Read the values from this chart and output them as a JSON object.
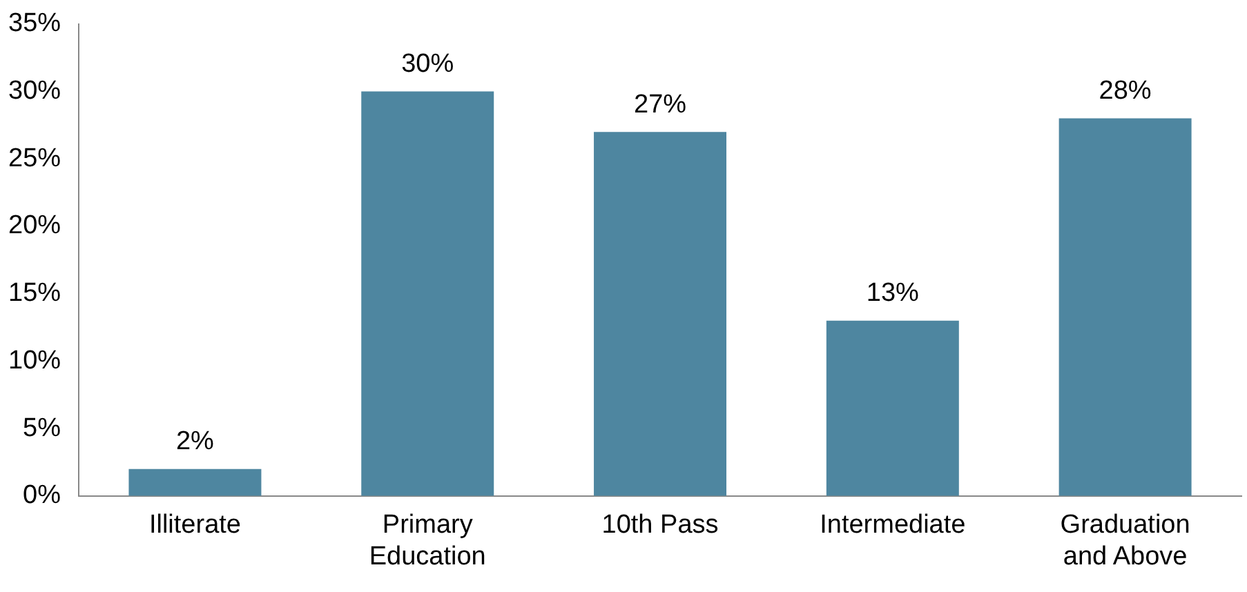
{
  "chart_data": {
    "type": "bar",
    "categories": [
      "Illiterate",
      "Primary Education",
      "10th Pass",
      "Intermediate",
      "Graduation and Above"
    ],
    "values": [
      2,
      30,
      27,
      13,
      28
    ],
    "value_labels": [
      "2%",
      "30%",
      "27%",
      "13%",
      "28%"
    ],
    "color": "#4e86a0",
    "ylim": [
      0,
      35
    ],
    "yticks": [
      {
        "value": 0,
        "label": "0%"
      },
      {
        "value": 5,
        "label": "5%"
      },
      {
        "value": 10,
        "label": "10%"
      },
      {
        "value": 15,
        "label": "15%"
      },
      {
        "value": 20,
        "label": "20%"
      },
      {
        "value": 25,
        "label": "25%"
      },
      {
        "value": 30,
        "label": "30%"
      },
      {
        "value": 35,
        "label": "35%"
      }
    ],
    "grid": false,
    "legend": false
  }
}
